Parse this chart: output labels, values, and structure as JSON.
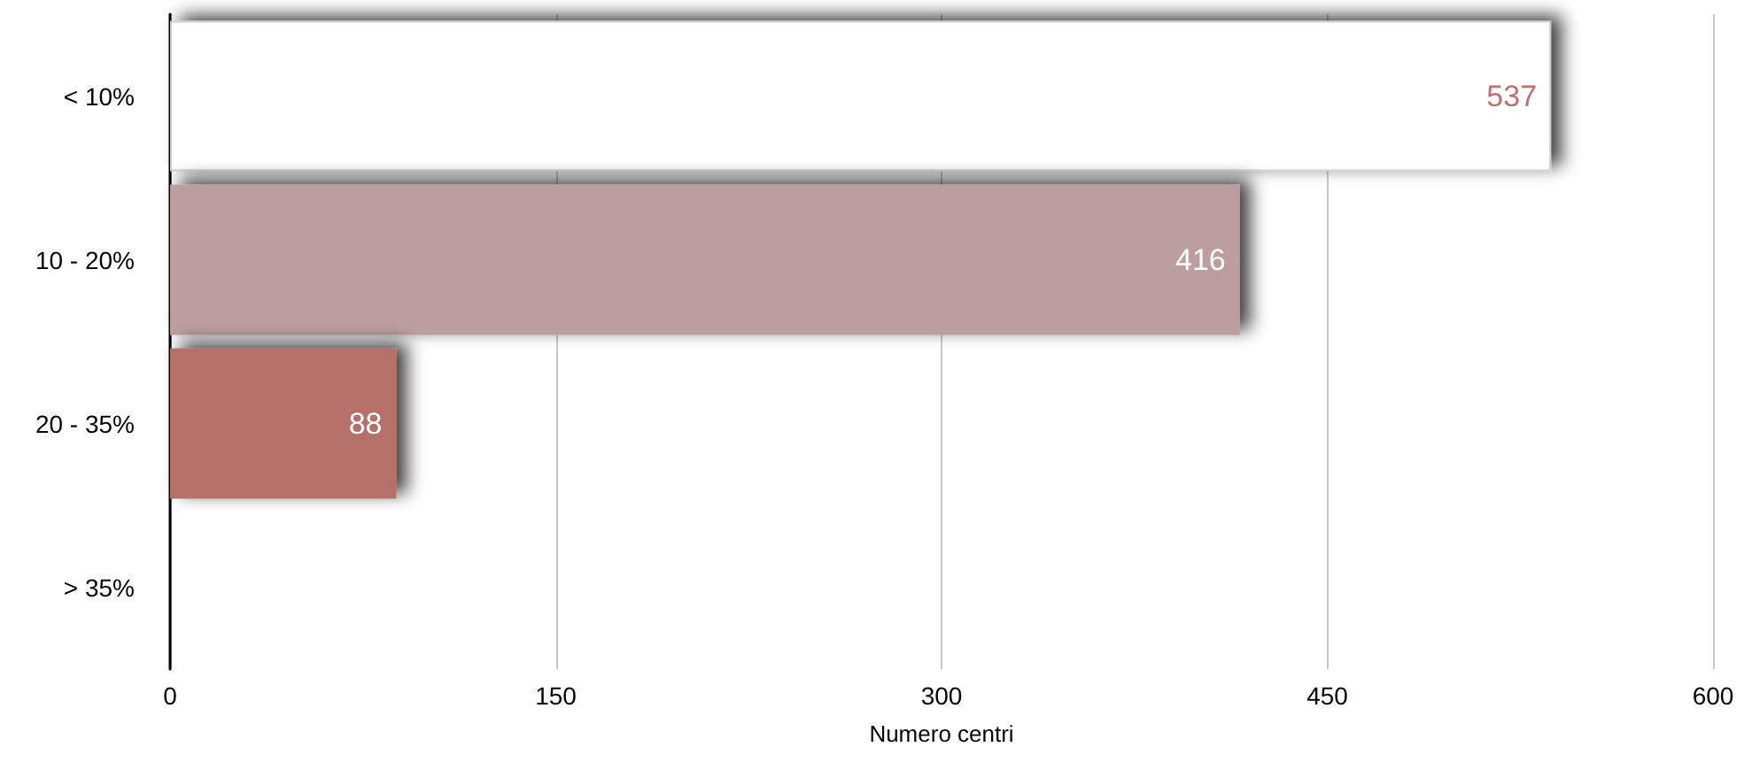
{
  "chart_data": {
    "type": "bar",
    "orientation": "horizontal",
    "xlabel": "Numero centri",
    "categories": [
      "< 10%",
      "10 - 20%",
      "20 - 35%",
      "> 35%"
    ],
    "values": [
      537,
      416,
      88,
      0
    ],
    "colors": [
      "#ffffff",
      "#bc9e9f",
      "#b5706a",
      "#b5706a"
    ],
    "value_labels": [
      "537",
      "416",
      "88",
      null
    ],
    "xlim": [
      0,
      600
    ],
    "xticks": [
      0,
      150,
      300,
      450,
      600
    ],
    "grid": "x"
  }
}
